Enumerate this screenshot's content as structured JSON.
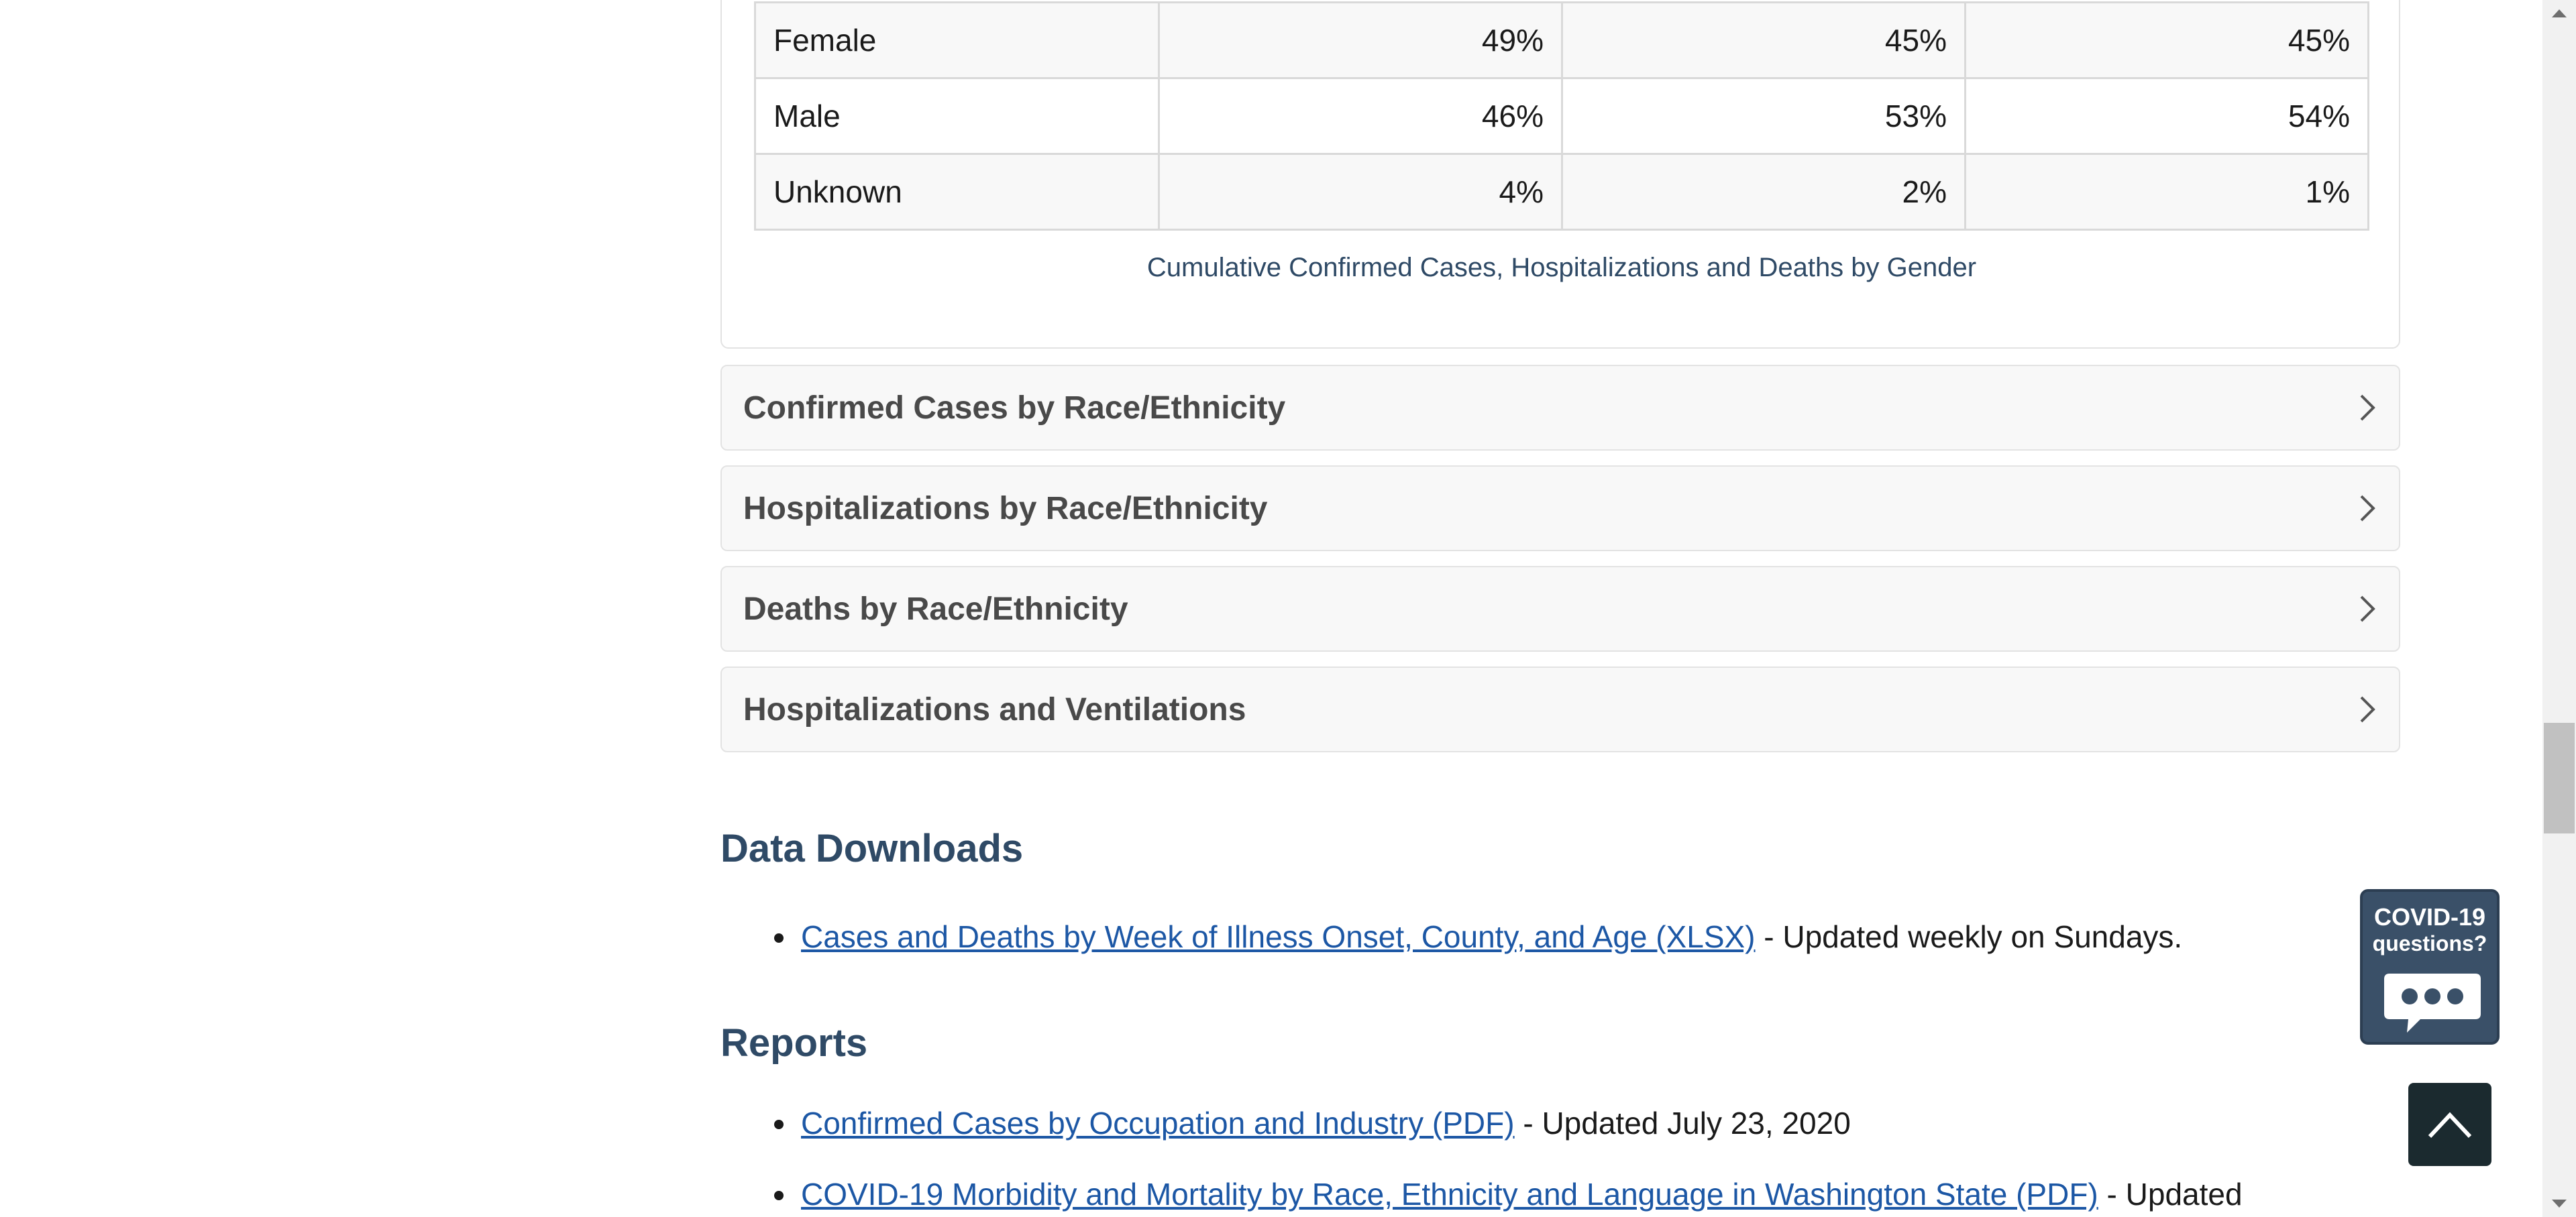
{
  "gender_table": {
    "rows": [
      {
        "label": "Female",
        "cases": "49%",
        "hospitalizations": "45%",
        "deaths": "45%"
      },
      {
        "label": "Male",
        "cases": "46%",
        "hospitalizations": "53%",
        "deaths": "54%"
      },
      {
        "label": "Unknown",
        "cases": "4%",
        "hospitalizations": "2%",
        "deaths": "1%"
      }
    ],
    "caption": "Cumulative Confirmed Cases, Hospitalizations and Deaths by Gender"
  },
  "accordions": [
    {
      "title": "Confirmed Cases by Race/Ethnicity"
    },
    {
      "title": "Hospitalizations by Race/Ethnicity"
    },
    {
      "title": "Deaths by Race/Ethnicity"
    },
    {
      "title": "Hospitalizations and Ventilations"
    }
  ],
  "data_downloads": {
    "heading": "Data Downloads",
    "items": [
      {
        "link": "Cases and Deaths by Week of Illness Onset, County, and Age (XLSX)",
        "note": " - Updated weekly on Sundays."
      }
    ]
  },
  "reports": {
    "heading": "Reports",
    "items": [
      {
        "link": "Confirmed Cases by Occupation and Industry (PDF)",
        "note": " - Updated July 23, 2020"
      },
      {
        "link": "COVID-19 Morbidity and Mortality by Race, Ethnicity and Language in Washington State (PDF)",
        "note": " - Updated"
      }
    ]
  },
  "widget": {
    "line1": "COVID-19",
    "line2": "questions?"
  },
  "icons": {
    "chevron": "chevron-right-icon",
    "chat": "chat-bubble-icon",
    "back_to_top": "chevron-up-icon"
  }
}
